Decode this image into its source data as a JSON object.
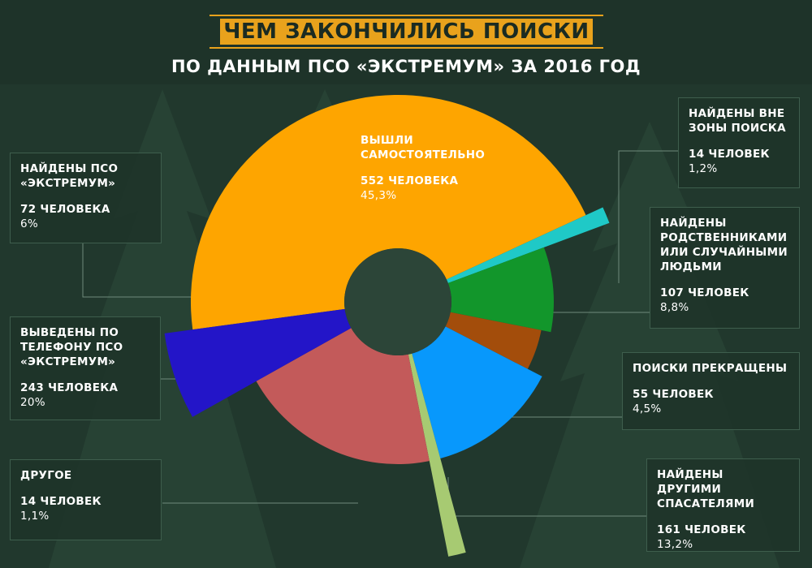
{
  "header": {
    "title": "Чем закончились поиски",
    "subtitle": "По данным ПСО «Экстремум» за 2016 год"
  },
  "colors": {
    "background": "#21382d",
    "accent": "#e9a21c"
  },
  "chart_data": {
    "type": "pie",
    "title": "Чем закончились поиски",
    "subtitle": "По данным ПСО «Экстремум» за 2016 год",
    "style": "exploded donut with varying slice radii",
    "slices": [
      {
        "label": "Вышли самостоятельно",
        "count": 552,
        "count_text": "552 человека",
        "percent": 45.3,
        "percent_text": "45,3%",
        "color": "#fea500"
      },
      {
        "label": "Найдены вне зоны поиска",
        "count": 14,
        "count_text": "14 человек",
        "percent": 1.2,
        "percent_text": "1,2%",
        "color": "#1fc9c7"
      },
      {
        "label": "Найдены родственниками или случайными людьми",
        "count": 107,
        "count_text": "107 человек",
        "percent": 8.8,
        "percent_text": "8,8%",
        "color": "#12962b"
      },
      {
        "label": "Поиски прекращены",
        "count": 55,
        "count_text": "55 человек",
        "percent": 4.5,
        "percent_text": "4,5%",
        "color": "#a34d0b"
      },
      {
        "label": "Найдены другими спасателями",
        "count": 161,
        "count_text": "161 человек",
        "percent": 13.2,
        "percent_text": "13,2%",
        "color": "#0898fc"
      },
      {
        "label": "Другое",
        "count": 14,
        "count_text": "14 человек",
        "percent": 1.1,
        "percent_text": "1,1%",
        "color": "#a7ca72"
      },
      {
        "label": "Выведены по телефону ПСО «Экстремум»",
        "count": 243,
        "count_text": "243 человека",
        "percent": 20,
        "percent_text": "20%",
        "color": "#c35a5a"
      },
      {
        "label": "Найдены ПСО «Экстремум»",
        "count": 72,
        "count_text": "72 человека",
        "percent": 6,
        "percent_text": "6%",
        "color": "#2315c8"
      }
    ]
  }
}
